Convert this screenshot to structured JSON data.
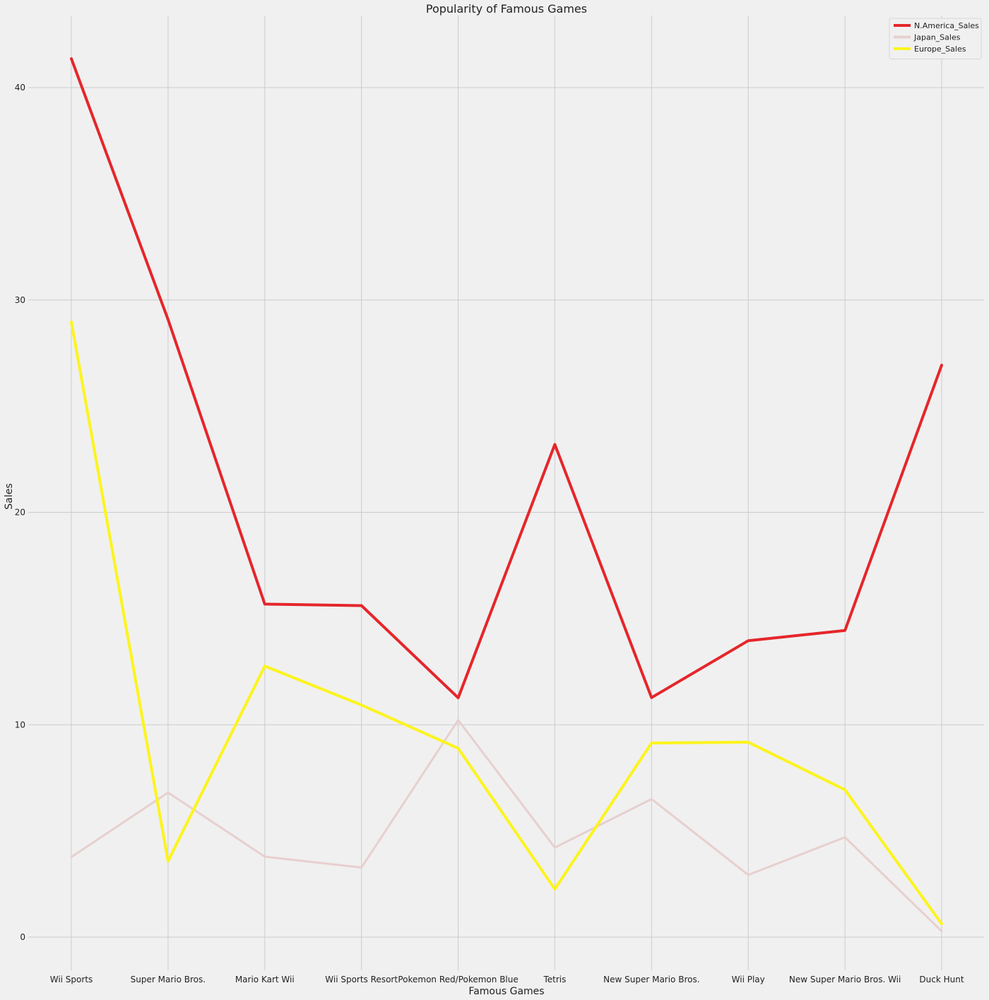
{
  "chart_data": {
    "type": "line",
    "title": "Popularity of Famous Games",
    "xlabel": "Famous Games",
    "ylabel": "Sales",
    "categories": [
      "Wii Sports",
      "Super Mario Bros.",
      "Mario Kart Wii",
      "Wii Sports Resort",
      "Pokemon Red/Pokemon Blue",
      "Tetris",
      "New Super Mario Bros.",
      "Wii Play",
      "New Super Mario Bros. Wii",
      "Duck Hunt"
    ],
    "yticks": [
      "0",
      "10",
      "20",
      "30",
      "40"
    ],
    "ylim": [
      -1.4,
      43.5
    ],
    "grid": true,
    "legend_position": "top-right",
    "series": [
      {
        "name": "N.America_Sales",
        "color": "#e5262b",
        "values": [
          41.36,
          29.08,
          15.68,
          15.61,
          11.27,
          23.2,
          11.28,
          13.96,
          14.44,
          26.93
        ]
      },
      {
        "name": "Japan_Sales",
        "color": "#e8cfcf",
        "values": [
          3.77,
          6.81,
          3.79,
          3.28,
          10.22,
          4.22,
          6.5,
          2.93,
          4.7,
          0.28
        ]
      },
      {
        "name": "Europe_Sales",
        "color": "#fcf41e",
        "values": [
          28.96,
          3.58,
          12.76,
          10.93,
          8.89,
          2.26,
          9.14,
          9.18,
          6.94,
          0.63
        ]
      }
    ]
  }
}
